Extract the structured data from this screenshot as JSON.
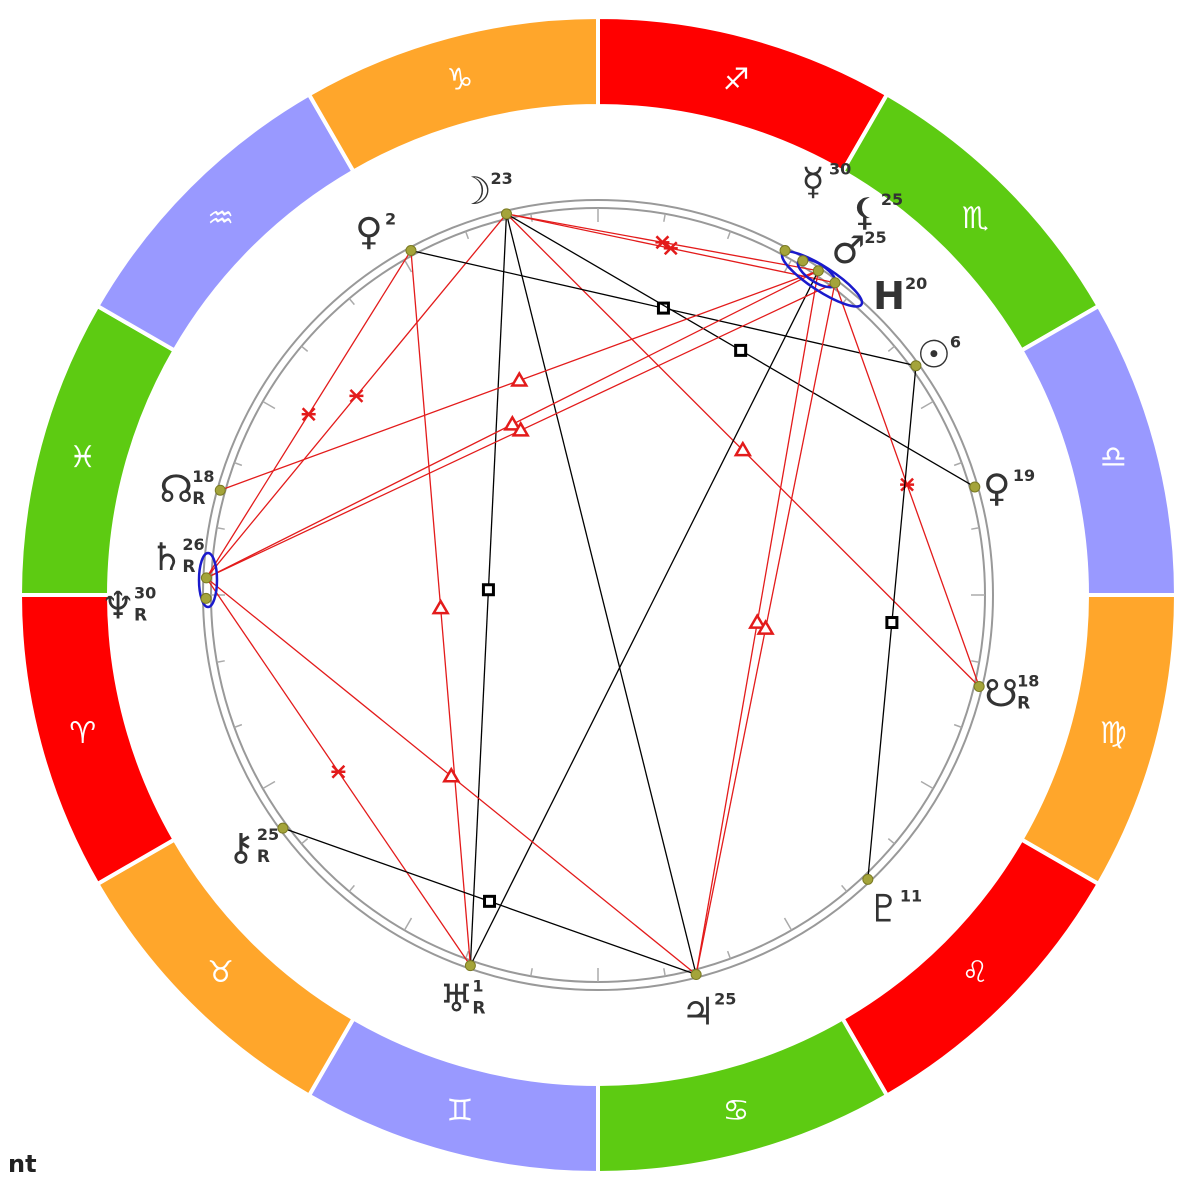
{
  "corner_label": "nt",
  "colors": {
    "fire": "#ff0000",
    "earth": "#ffa62b",
    "air": "#9999ff",
    "water": "#5dcb12",
    "aspect_major": "#000000",
    "aspect_harmonic": "#e31b1b",
    "conjunction": "#1a1acc",
    "planet_dot": "#a4a43a"
  },
  "zodiac": [
    {
      "glyph": "♐",
      "name": "sagittarius",
      "element": "fire"
    },
    {
      "glyph": "♏",
      "name": "scorpio",
      "element": "water"
    },
    {
      "glyph": "♎",
      "name": "libra",
      "element": "air"
    },
    {
      "glyph": "♍",
      "name": "virgo",
      "element": "earth"
    },
    {
      "glyph": "♌",
      "name": "leo",
      "element": "fire"
    },
    {
      "glyph": "♋",
      "name": "cancer",
      "element": "water"
    },
    {
      "glyph": "♊",
      "name": "gemini",
      "element": "air"
    },
    {
      "glyph": "♉",
      "name": "taurus",
      "element": "earth"
    },
    {
      "glyph": "♈",
      "name": "aries",
      "element": "fire"
    },
    {
      "glyph": "♓",
      "name": "pisces",
      "element": "water"
    },
    {
      "glyph": "♒",
      "name": "aquarius",
      "element": "air"
    },
    {
      "glyph": "♑",
      "name": "capricorn",
      "element": "earth"
    }
  ],
  "planets": [
    {
      "id": "moon",
      "glyph": "☽",
      "degree": "23",
      "retro": ""
    },
    {
      "id": "venus",
      "glyph": "♀",
      "degree": "2",
      "retro": ""
    },
    {
      "id": "mercury",
      "glyph": "☿",
      "degree": "30",
      "retro": ""
    },
    {
      "id": "lilith",
      "glyph": "⚸",
      "degree": "25",
      "retro": ""
    },
    {
      "id": "mars",
      "glyph": "♂",
      "degree": "25",
      "retro": ""
    },
    {
      "id": "house",
      "glyph": "H",
      "degree": "20",
      "retro": ""
    },
    {
      "id": "sun",
      "glyph": "☉",
      "degree": "6",
      "retro": ""
    },
    {
      "id": "venus-2",
      "glyph": "♀",
      "degree": "19",
      "retro": ""
    },
    {
      "id": "south-node",
      "glyph": "☋",
      "degree": "18",
      "retro": "R"
    },
    {
      "id": "pluto",
      "glyph": "♇",
      "degree": "11",
      "retro": ""
    },
    {
      "id": "jupiter",
      "glyph": "♃",
      "degree": "25",
      "retro": ""
    },
    {
      "id": "uranus",
      "glyph": "♅",
      "degree": "1",
      "retro": "R"
    },
    {
      "id": "chiron",
      "glyph": "⚷",
      "degree": "25",
      "retro": "R"
    },
    {
      "id": "neptune",
      "glyph": "♆",
      "degree": "30",
      "retro": "R"
    },
    {
      "id": "saturn",
      "glyph": "♄",
      "degree": "26",
      "retro": "R"
    },
    {
      "id": "north-node",
      "glyph": "☊",
      "degree": "18",
      "retro": "R"
    }
  ],
  "aspects": [
    {
      "from": "moon",
      "to": "house",
      "kind": "sextile",
      "color": "aspect_harmonic"
    },
    {
      "from": "moon",
      "to": "mars",
      "kind": "sextile",
      "color": "aspect_harmonic"
    },
    {
      "from": "moon",
      "to": "uranus",
      "kind": "square",
      "color": "aspect_major"
    },
    {
      "from": "moon",
      "to": "jupiter",
      "kind": "opposition",
      "color": "aspect_major"
    },
    {
      "from": "moon",
      "to": "south-node",
      "kind": "trine",
      "color": "aspect_harmonic"
    },
    {
      "from": "moon",
      "to": "saturn",
      "kind": "sextile",
      "color": "aspect_harmonic"
    },
    {
      "from": "venus",
      "to": "sun",
      "kind": "square",
      "color": "aspect_major"
    },
    {
      "from": "venus",
      "to": "uranus",
      "kind": "trine",
      "color": "aspect_harmonic"
    },
    {
      "from": "venus",
      "to": "saturn",
      "kind": "sextile",
      "color": "aspect_harmonic"
    },
    {
      "from": "moon",
      "to": "venus-2",
      "kind": "square",
      "color": "aspect_major"
    },
    {
      "from": "mars",
      "to": "jupiter",
      "kind": "trine",
      "color": "aspect_harmonic"
    },
    {
      "from": "house",
      "to": "jupiter",
      "kind": "trine",
      "color": "aspect_harmonic"
    },
    {
      "from": "mars",
      "to": "uranus",
      "kind": "opposition",
      "color": "aspect_major"
    },
    {
      "from": "mars",
      "to": "saturn",
      "kind": "trine",
      "color": "aspect_harmonic"
    },
    {
      "from": "house",
      "to": "saturn",
      "kind": "trine",
      "color": "aspect_harmonic"
    },
    {
      "from": "mars",
      "to": "north-node",
      "kind": "trine",
      "color": "aspect_harmonic"
    },
    {
      "from": "house",
      "to": "south-node",
      "kind": "sextile",
      "color": "aspect_harmonic"
    },
    {
      "from": "sun",
      "to": "pluto",
      "kind": "square",
      "color": "aspect_major"
    },
    {
      "from": "saturn",
      "to": "uranus",
      "kind": "sextile",
      "color": "aspect_harmonic"
    },
    {
      "from": "saturn",
      "to": "jupiter",
      "kind": "trine",
      "color": "aspect_harmonic"
    },
    {
      "from": "chiron",
      "to": "jupiter",
      "kind": "square",
      "color": "aspect_major"
    }
  ]
}
